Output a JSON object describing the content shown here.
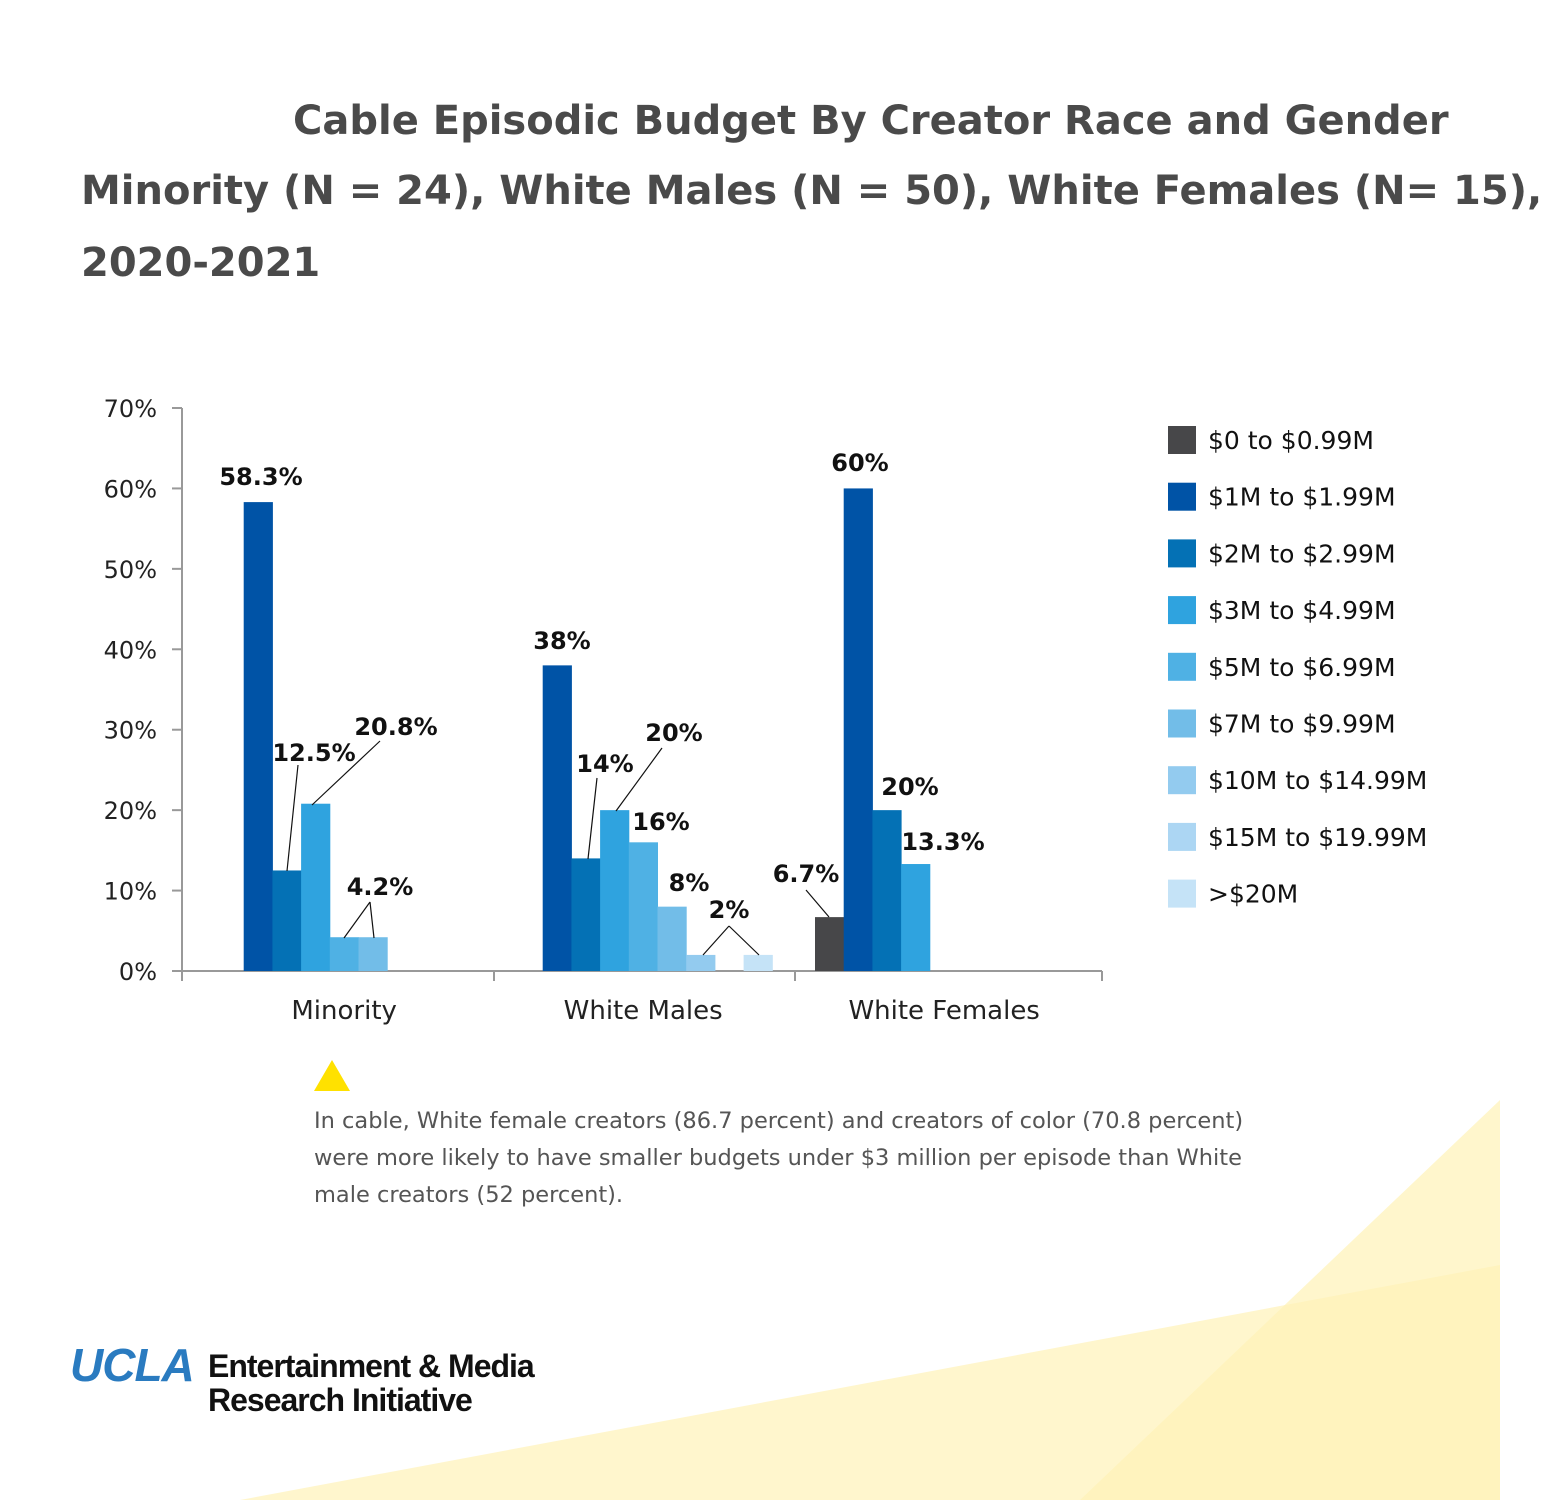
{
  "title": {
    "line1": "Cable Episodic Budget By Creator Race and Gender",
    "line2": "Minority (N = 24), White Males (N = 50), White Females (N= 15),",
    "line3": "2020-2021"
  },
  "chart_data": {
    "type": "bar",
    "categories": [
      "Minority",
      "White Males",
      "White Females"
    ],
    "ylim": [
      0,
      70
    ],
    "yticks": [
      "0%",
      "10%",
      "20%",
      "30%",
      "40%",
      "50%",
      "60%",
      "70%"
    ],
    "legend_position": "right",
    "grid": false,
    "series": [
      {
        "name": "$0 to $0.99M",
        "color": "#474749",
        "values": [
          0,
          0,
          6.7
        ],
        "labels": [
          "",
          "",
          "6.7%"
        ]
      },
      {
        "name": "$1M to $1.99M",
        "color": "#0053a6",
        "values": [
          58.3,
          38,
          60
        ],
        "labels": [
          "58.3%",
          "38%",
          "60%"
        ]
      },
      {
        "name": "$2M to $2.99M",
        "color": "#0471b5",
        "values": [
          12.5,
          14,
          20
        ],
        "labels": [
          "12.5%",
          "14%",
          "20%"
        ]
      },
      {
        "name": "$3M to $4.99M",
        "color": "#2fa3df",
        "values": [
          20.8,
          20,
          13.3
        ],
        "labels": [
          "20.8%",
          "20%",
          "13.3%"
        ]
      },
      {
        "name": "$5M to $6.99M",
        "color": "#4fb1e4",
        "values": [
          4.2,
          16,
          0
        ],
        "labels": [
          "4.2%",
          "16%",
          ""
        ]
      },
      {
        "name": "$7M to $9.99M",
        "color": "#72bde8",
        "values": [
          4.2,
          8,
          0
        ],
        "labels": [
          "",
          "8%",
          ""
        ]
      },
      {
        "name": "$10M to $14.99M",
        "color": "#93cbef",
        "values": [
          0,
          2,
          0
        ],
        "labels": [
          "",
          "2%",
          ""
        ]
      },
      {
        "name": "$15M to $19.99M",
        "color": "#acd6f3",
        "values": [
          0,
          0,
          0
        ],
        "labels": [
          "",
          "",
          ""
        ]
      },
      {
        "name": ">$20M",
        "color": "#c5e3f7",
        "values": [
          0,
          2,
          0
        ],
        "labels": [
          "",
          "",
          ""
        ]
      }
    ]
  },
  "note": "In cable, White female creators (86.7 percent) and creators of color (70.8 percent) were more likely to have smaller budgets under $3 million per episode than White male creators (52 percent).",
  "logo": {
    "ucla": "UCLA",
    "line1": "Entertainment & Media",
    "line2": "Research Initiative"
  },
  "colors": {
    "accent_yellow": "#ffe100",
    "title_gray": "#4a4a4a"
  }
}
